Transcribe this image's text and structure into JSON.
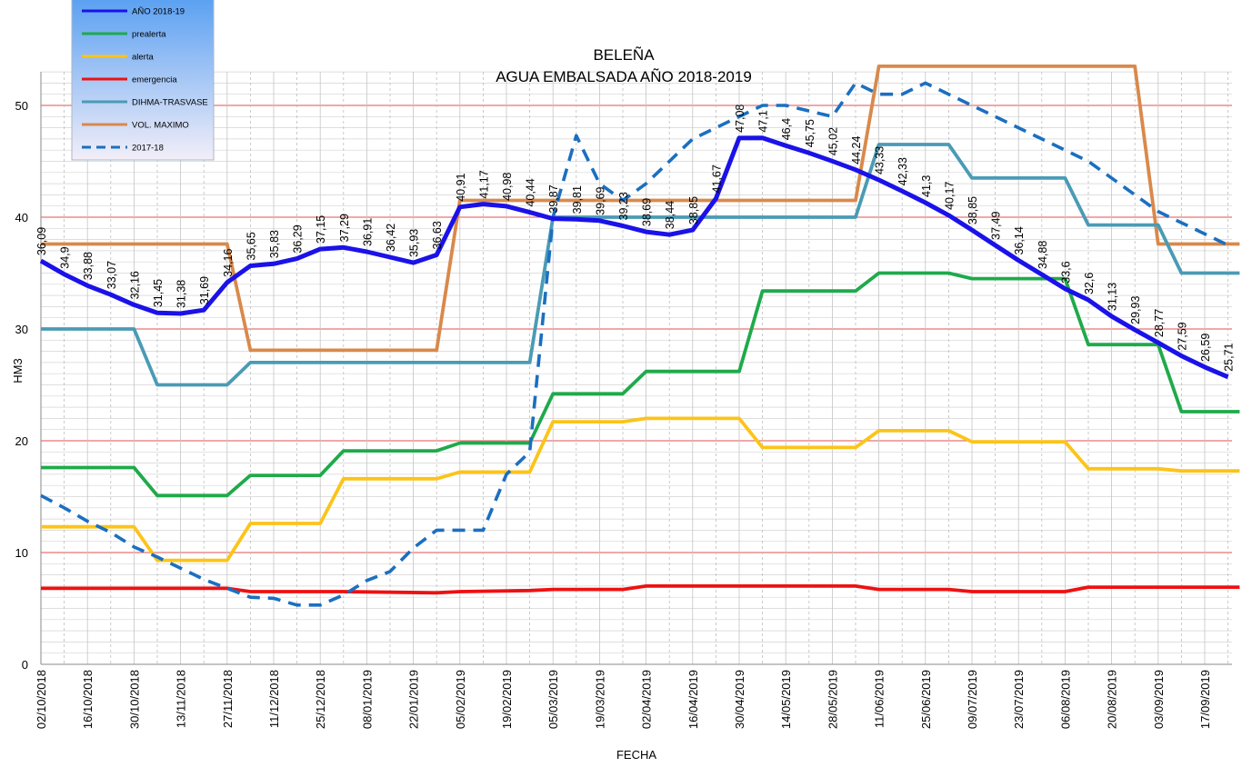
{
  "chart_data": {
    "type": "line",
    "title": "BELEÑA",
    "subtitle": "AGUA EMBALSADA AÑO 2018-2019",
    "xlabel": "FECHA",
    "ylabel": "HM3",
    "ylim": [
      0,
      53
    ],
    "yticks": [
      0,
      10,
      20,
      30,
      40,
      50
    ],
    "xlim": [
      0,
      51.5
    ],
    "xticks": [
      "02/10/2018",
      "16/10/2018",
      "30/10/2018",
      "13/11/2018",
      "27/11/2018",
      "11/12/2018",
      "25/12/2018",
      "08/01/2019",
      "22/01/2019",
      "05/02/2019",
      "19/02/2019",
      "05/03/2019",
      "19/03/2019",
      "02/04/2019",
      "16/04/2019",
      "30/04/2019",
      "14/05/2019",
      "28/05/2019",
      "11/06/2019",
      "25/06/2019",
      "09/07/2019",
      "23/07/2019",
      "06/08/2019",
      "20/08/2019",
      "03/09/2019",
      "17/09/2019"
    ],
    "grid": true,
    "legend_position": "top-left",
    "series": [
      {
        "name": "AÑO 2018-19",
        "color": "#1a12e8",
        "style": "solid",
        "x": [
          0,
          1,
          2,
          3,
          4,
          5,
          6,
          7,
          8,
          9,
          10,
          11,
          12,
          13,
          14,
          15,
          16,
          17,
          18,
          19,
          20,
          21,
          22,
          23,
          24,
          25,
          26,
          27,
          28,
          29,
          30,
          31,
          32,
          33,
          34,
          35,
          36,
          37,
          38,
          39,
          40,
          41,
          42,
          43,
          44,
          45,
          46,
          47,
          48,
          49,
          50,
          51
        ],
        "values": [
          36.09,
          34.9,
          33.88,
          33.07,
          32.16,
          31.45,
          31.38,
          31.69,
          34.16,
          35.65,
          35.83,
          36.29,
          37.15,
          37.29,
          36.91,
          36.42,
          35.93,
          36.63,
          40.91,
          41.17,
          40.98,
          40.44,
          39.87,
          39.81,
          39.69,
          39.23,
          38.69,
          38.44,
          38.85,
          41.67,
          47.08,
          47.1,
          46.4,
          45.75,
          45.02,
          44.24,
          43.33,
          42.33,
          41.3,
          40.17,
          38.85,
          37.49,
          36.14,
          34.88,
          33.6,
          32.6,
          31.13,
          29.93,
          28.77,
          27.59,
          26.59,
          25.71
        ]
      },
      {
        "name": "prealerta",
        "color": "#1faa4b",
        "style": "solid",
        "x": [
          0,
          4,
          5,
          8,
          9,
          12,
          13,
          17,
          18,
          21,
          22,
          25,
          26,
          30,
          31,
          35,
          36,
          39,
          40,
          44,
          45,
          48,
          49,
          51.5
        ],
        "values": [
          17.6,
          17.6,
          15.1,
          15.1,
          16.9,
          16.9,
          19.1,
          19.1,
          19.8,
          19.8,
          24.2,
          24.2,
          26.2,
          26.2,
          33.4,
          33.4,
          35.0,
          35.0,
          34.5,
          34.5,
          28.6,
          28.6,
          22.6,
          22.6
        ]
      },
      {
        "name": "alerta",
        "color": "#fcc419",
        "style": "solid",
        "x": [
          0,
          4,
          5,
          8,
          9,
          12,
          13,
          17,
          18,
          21,
          22,
          25,
          26,
          30,
          31,
          35,
          36,
          39,
          40,
          44,
          45,
          48,
          49,
          51.5
        ],
        "values": [
          12.3,
          12.3,
          9.3,
          9.3,
          12.6,
          12.6,
          16.6,
          16.6,
          17.2,
          17.2,
          21.7,
          21.7,
          22.0,
          22.0,
          19.4,
          19.4,
          20.9,
          20.9,
          19.9,
          19.9,
          17.5,
          17.5,
          17.3,
          17.3
        ]
      },
      {
        "name": "emergencia",
        "color": "#ee1111",
        "style": "solid",
        "x": [
          0,
          8,
          9,
          13,
          17,
          18,
          21,
          22,
          25,
          26,
          35,
          36,
          39,
          40,
          44,
          45,
          51.5
        ],
        "values": [
          6.8,
          6.8,
          6.5,
          6.5,
          6.4,
          6.5,
          6.6,
          6.7,
          6.7,
          7.0,
          7.0,
          6.7,
          6.7,
          6.5,
          6.5,
          6.9,
          6.9
        ]
      },
      {
        "name": "DIHMA-TRASVASE",
        "color": "#4a9bb5",
        "style": "solid",
        "x": [
          0,
          4,
          5,
          8,
          9,
          21,
          22,
          35,
          36,
          39,
          40,
          44,
          45,
          48,
          49,
          51.5
        ],
        "values": [
          30,
          30,
          25,
          25,
          27,
          27,
          40,
          40,
          46.5,
          46.5,
          43.5,
          43.5,
          39.3,
          39.3,
          35,
          35
        ]
      },
      {
        "name": "VOL. MAXIMO",
        "color": "#d9894b",
        "style": "solid",
        "x": [
          0,
          8,
          9,
          17,
          18,
          35,
          36,
          47,
          48,
          51.5
        ],
        "values": [
          37.6,
          37.6,
          28.1,
          28.1,
          41.5,
          41.5,
          53.5,
          53.5,
          37.6,
          37.6
        ]
      },
      {
        "name": "2017-18",
        "color": "#1b6fc0",
        "style": "dashed",
        "x": [
          0,
          1,
          2,
          3,
          4,
          5,
          6,
          7,
          8,
          9,
          10,
          11,
          12,
          13,
          14,
          15,
          16,
          17,
          18,
          19,
          20,
          21,
          22,
          23,
          24,
          25,
          26,
          27,
          28,
          29,
          30,
          31,
          32,
          33,
          34,
          35,
          36,
          37,
          38,
          39,
          40,
          41,
          42,
          43,
          44,
          45,
          46,
          47,
          48,
          49,
          50,
          51
        ],
        "values": [
          15.1,
          14.0,
          12.8,
          11.8,
          10.5,
          9.6,
          8.6,
          7.6,
          6.8,
          6.0,
          5.9,
          5.3,
          5.3,
          6.2,
          7.5,
          8.3,
          10.4,
          12.0,
          12.0,
          12.0,
          17.0,
          19.0,
          40.0,
          47.3,
          43.0,
          41.5,
          43.0,
          45.0,
          47.0,
          48.0,
          49.0,
          50.0,
          50.0,
          49.5,
          49.0,
          52.0,
          51.0,
          51.0,
          52.0,
          51.0,
          50.0,
          49.0,
          48.0,
          47.0,
          46.0,
          45.0,
          43.5,
          42.0,
          40.5,
          39.5,
          38.5,
          37.5
        ]
      }
    ]
  }
}
